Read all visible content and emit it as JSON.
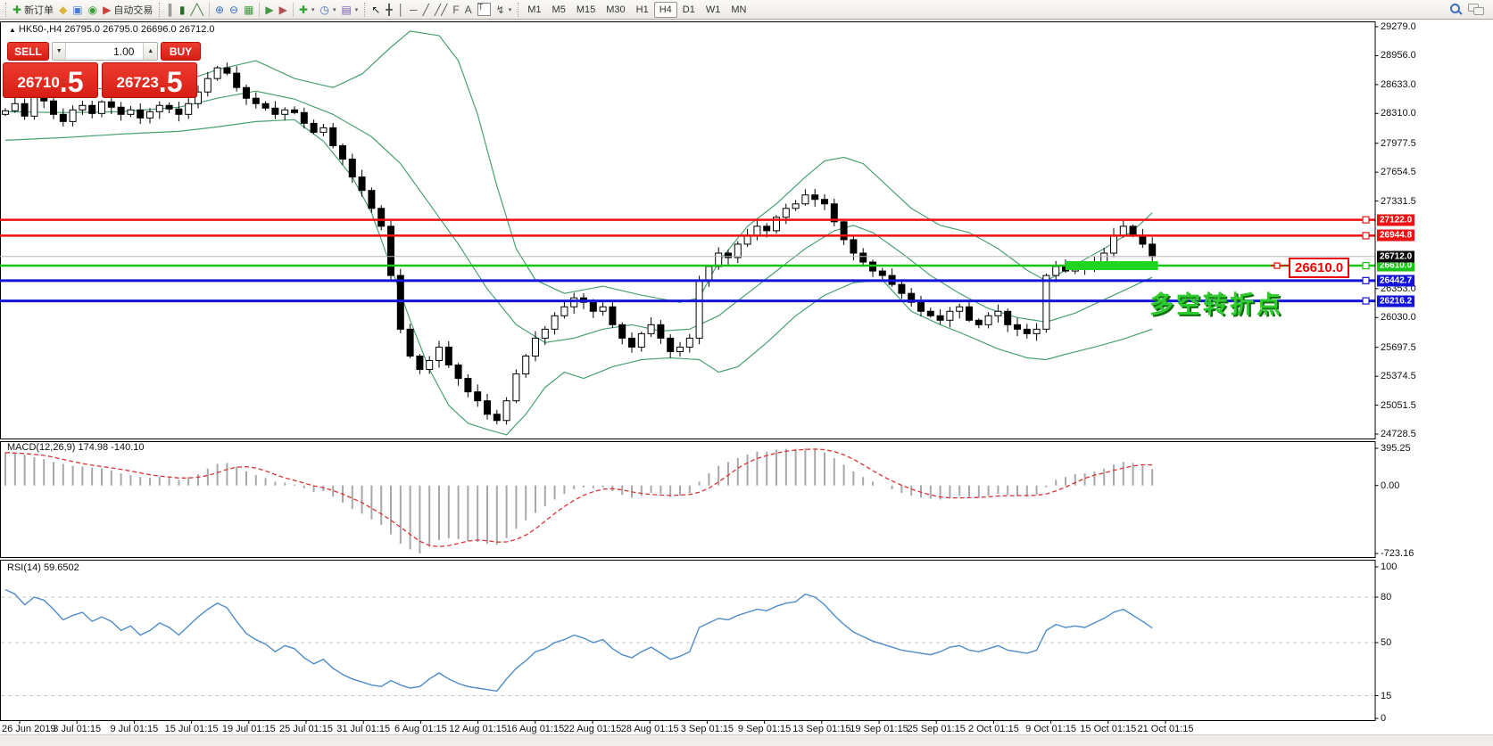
{
  "toolbar": {
    "groups": [
      {
        "items": [
          {
            "name": "new-order-button",
            "glyph": "✚",
            "glyph_color": "#2fa12f",
            "label": "新订单"
          },
          {
            "name": "objects-icon",
            "glyph": "◆",
            "glyph_color": "#e0b43c"
          },
          {
            "name": "terminal-icon",
            "glyph": "▣",
            "glyph_color": "#4a7fc9"
          },
          {
            "name": "signals-icon",
            "glyph": "◉",
            "glyph_color": "#3ba03b"
          },
          {
            "name": "autotrading-button",
            "glyph": "▶",
            "glyph_color": "#cf3a3a",
            "label": "自动交易"
          }
        ]
      },
      {
        "items": [
          {
            "name": "bar-chart-button",
            "glyph": "║",
            "glyph_color": "#444444"
          },
          {
            "name": "candlestick-button",
            "glyph": "▮",
            "glyph_color": "#2a6b2a"
          },
          {
            "name": "line-chart-button",
            "glyph": "╱╲",
            "glyph_color": "#3a7a3a"
          }
        ]
      },
      {
        "items": [
          {
            "name": "zoom-in-button",
            "glyph": "⊕",
            "glyph_color": "#3a6ebf"
          },
          {
            "name": "zoom-out-button",
            "glyph": "⊖",
            "glyph_color": "#3a6ebf"
          },
          {
            "name": "tile-windows-button",
            "glyph": "▦",
            "glyph_color": "#3f9b3f"
          }
        ]
      },
      {
        "items": [
          {
            "name": "auto-scroll-button",
            "glyph": "▶",
            "glyph_color": "#3f9b3f"
          },
          {
            "name": "chart-shift-button",
            "glyph": "▶",
            "glyph_color": "#b05050"
          }
        ]
      },
      {
        "items": [
          {
            "name": "new-chart-button",
            "glyph": "✚",
            "glyph_color": "#2fa12f",
            "dropdown": true
          },
          {
            "name": "periods-button",
            "glyph": "◷",
            "glyph_color": "#3a6ebf",
            "dropdown": true
          },
          {
            "name": "templates-button",
            "glyph": "▤",
            "glyph_color": "#7a5ab0",
            "dropdown": true
          }
        ]
      },
      {
        "items": [
          {
            "name": "cursor-button",
            "glyph": "↖",
            "glyph_color": "#222222"
          },
          {
            "name": "crosshair-button",
            "glyph": "╋",
            "glyph_color": "#555555"
          },
          {
            "name": "vertical-line-button",
            "glyph": "│",
            "glyph_color": "#555555"
          },
          {
            "name": "horizontal-line-button",
            "glyph": "─",
            "glyph_color": "#555555"
          },
          {
            "name": "trendline-button",
            "glyph": "╱",
            "glyph_color": "#555555"
          },
          {
            "name": "equidistant-channel-button",
            "glyph": "╱╱",
            "glyph_color": "#555555"
          },
          {
            "name": "fibonacci-button",
            "glyph": "F",
            "glyph_color": "#555555"
          },
          {
            "name": "text-button",
            "glyph": "A",
            "glyph_color": "#555555"
          },
          {
            "name": "text-label-button",
            "glyph": "T",
            "glyph_color": "#555555",
            "boxed": true
          },
          {
            "name": "arrows-button",
            "glyph": "↯",
            "glyph_color": "#555555",
            "dropdown": true
          }
        ]
      }
    ],
    "timeframes": [
      "M1",
      "M5",
      "M15",
      "M30",
      "H1",
      "H4",
      "D1",
      "W1",
      "MN"
    ],
    "active_timeframe": "H4"
  },
  "chart": {
    "marker": "▲",
    "title": "HK50-,H4 26795.0 26795.0 26696.0 26712.0"
  },
  "trade_panel": {
    "sell_label": "SELL",
    "buy_label": "BUY",
    "volume": "1.00",
    "spin_down": "▼",
    "spin_up": "▲",
    "sell_price": {
      "main": "26710",
      "big": ".5"
    },
    "buy_price": {
      "main": "26723",
      "big": ".5"
    }
  },
  "annotations": {
    "price_callout": "26610.0",
    "pivot_text": "多空转折点",
    "pivot_color": "#2ecc2e",
    "callout_color": "#f20000"
  },
  "chart_data": {
    "type": "candlestick",
    "symbol": "HK50-",
    "period": "H4",
    "x_labels": [
      "26 Jun 2019",
      "3 Jul 01:15",
      "9 Jul 01:15",
      "15 Jul 01:15",
      "19 Jul 01:15",
      "25 Jul 01:15",
      "31 Jul 01:15",
      "6 Aug 01:15",
      "12 Aug 01:15",
      "16 Aug 01:15",
      "22 Aug 01:15",
      "28 Aug 01:15",
      "3 Sep 01:15",
      "9 Sep 01:15",
      "13 Sep 01:15",
      "19 Sep 01:15",
      "25 Sep 01:15",
      "2 Oct 01:15",
      "9 Oct 01:15",
      "15 Oct 01:15",
      "21 Oct 01:15"
    ],
    "main": {
      "ylim": [
        24728.5,
        29279.0
      ],
      "yticks": [
        29279.0,
        28956.0,
        28633.0,
        28310.0,
        27977.5,
        27654.5,
        27331.5,
        26353.0,
        26030.0,
        25697.5,
        25374.5,
        25051.5,
        24728.5
      ],
      "first_open": 28300,
      "closes": [
        28340,
        28420,
        28280,
        28510,
        28450,
        28300,
        28220,
        28350,
        28400,
        28310,
        28440,
        28380,
        28300,
        28350,
        28260,
        28330,
        28400,
        28360,
        28300,
        28420,
        28550,
        28700,
        28820,
        28760,
        28600,
        28480,
        28420,
        28370,
        28300,
        28350,
        28320,
        28200,
        28100,
        28150,
        27950,
        27800,
        27600,
        27450,
        27250,
        27050,
        26500,
        25900,
        25600,
        25450,
        25550,
        25700,
        25500,
        25350,
        25200,
        25100,
        24950,
        24880,
        25100,
        25400,
        25600,
        25800,
        25900,
        26050,
        26150,
        26250,
        26200,
        26100,
        26150,
        25950,
        25800,
        25700,
        25850,
        25950,
        25800,
        25650,
        25700,
        25800,
        26450,
        26600,
        26750,
        26700,
        26850,
        26950,
        27050,
        27000,
        27150,
        27250,
        27300,
        27400,
        27350,
        27300,
        27100,
        26900,
        26750,
        26650,
        26550,
        26500,
        26400,
        26300,
        26200,
        26100,
        26050,
        26000,
        26100,
        26150,
        26000,
        25950,
        26050,
        26100,
        25950,
        25900,
        25850,
        25900,
        26500,
        26600,
        26550,
        26600,
        26580,
        26650,
        26750,
        26950,
        27050,
        26950,
        26850,
        26712
      ],
      "up_fill": "#ffffff",
      "down_fill": "#000000",
      "outline": "#000000",
      "band_color": "#4aa173",
      "bollinger": {
        "upper": [
          [
            0,
            28650
          ],
          [
            6,
            28600
          ],
          [
            12,
            28580
          ],
          [
            18,
            28650
          ],
          [
            22,
            28800
          ],
          [
            26,
            28900
          ],
          [
            30,
            28700
          ],
          [
            34,
            28600
          ],
          [
            37,
            28750
          ],
          [
            40,
            29050
          ],
          [
            42,
            29230
          ],
          [
            45,
            29180
          ],
          [
            47,
            28900
          ],
          [
            49,
            28300
          ],
          [
            51,
            27500
          ],
          [
            53,
            26800
          ],
          [
            55,
            26450
          ],
          [
            58,
            26300
          ],
          [
            62,
            26380
          ],
          [
            66,
            26280
          ],
          [
            70,
            26200
          ],
          [
            72,
            26250
          ],
          [
            74,
            26650
          ],
          [
            77,
            27050
          ],
          [
            80,
            27300
          ],
          [
            83,
            27600
          ],
          [
            85,
            27780
          ],
          [
            87,
            27820
          ],
          [
            89,
            27750
          ],
          [
            91,
            27550
          ],
          [
            94,
            27250
          ],
          [
            97,
            27060
          ],
          [
            100,
            26980
          ],
          [
            103,
            26800
          ],
          [
            106,
            26560
          ],
          [
            108,
            26440
          ],
          [
            111,
            26620
          ],
          [
            114,
            26800
          ],
          [
            117,
            27000
          ],
          [
            119,
            27200
          ]
        ],
        "middle": [
          [
            0,
            28330
          ],
          [
            6,
            28320
          ],
          [
            12,
            28330
          ],
          [
            18,
            28380
          ],
          [
            22,
            28480
          ],
          [
            26,
            28560
          ],
          [
            30,
            28470
          ],
          [
            34,
            28300
          ],
          [
            38,
            28050
          ],
          [
            41,
            27750
          ],
          [
            44,
            27300
          ],
          [
            47,
            26850
          ],
          [
            50,
            26350
          ],
          [
            53,
            25950
          ],
          [
            56,
            25750
          ],
          [
            59,
            25800
          ],
          [
            62,
            25900
          ],
          [
            65,
            25950
          ],
          [
            68,
            25880
          ],
          [
            71,
            25900
          ],
          [
            74,
            26050
          ],
          [
            77,
            26300
          ],
          [
            80,
            26550
          ],
          [
            83,
            26800
          ],
          [
            86,
            27000
          ],
          [
            88,
            27060
          ],
          [
            90,
            26980
          ],
          [
            93,
            26750
          ],
          [
            96,
            26500
          ],
          [
            99,
            26300
          ],
          [
            102,
            26130
          ],
          [
            105,
            26030
          ],
          [
            108,
            25980
          ],
          [
            111,
            26080
          ],
          [
            114,
            26230
          ],
          [
            117,
            26380
          ],
          [
            119,
            26480
          ]
        ],
        "lower": [
          [
            0,
            28010
          ],
          [
            6,
            28040
          ],
          [
            12,
            28080
          ],
          [
            18,
            28110
          ],
          [
            22,
            28160
          ],
          [
            26,
            28220
          ],
          [
            30,
            28240
          ],
          [
            33,
            28000
          ],
          [
            36,
            27600
          ],
          [
            38,
            27200
          ],
          [
            40,
            26600
          ],
          [
            42,
            26000
          ],
          [
            44,
            25450
          ],
          [
            46,
            25050
          ],
          [
            48,
            24850
          ],
          [
            50,
            24780
          ],
          [
            52,
            24720
          ],
          [
            54,
            24950
          ],
          [
            56,
            25250
          ],
          [
            58,
            25420
          ],
          [
            60,
            25350
          ],
          [
            63,
            25480
          ],
          [
            66,
            25560
          ],
          [
            69,
            25580
          ],
          [
            72,
            25560
          ],
          [
            74,
            25420
          ],
          [
            76,
            25480
          ],
          [
            79,
            25750
          ],
          [
            82,
            26050
          ],
          [
            85,
            26280
          ],
          [
            88,
            26420
          ],
          [
            91,
            26450
          ],
          [
            94,
            26100
          ],
          [
            97,
            25950
          ],
          [
            100,
            25820
          ],
          [
            103,
            25680
          ],
          [
            106,
            25580
          ],
          [
            108,
            25560
          ],
          [
            110,
            25620
          ],
          [
            113,
            25700
          ],
          [
            116,
            25790
          ],
          [
            119,
            25900
          ]
        ]
      },
      "hlines": [
        {
          "price": 27122.0,
          "tag": "27122.0",
          "color": "#ee1111",
          "width": 2.5
        },
        {
          "price": 26944.8,
          "tag": "26944.8",
          "color": "#ee1111",
          "width": 2.5
        },
        {
          "price": 26610.0,
          "tag": "26610.0",
          "color": "#17c517",
          "width": 2.5
        },
        {
          "price": 26442.7,
          "tag": "26442.7",
          "color": "#1414d9",
          "width": 3
        },
        {
          "price": 26216.2,
          "tag": "26216.2",
          "color": "#1414d9",
          "width": 3
        }
      ],
      "current_price": {
        "price": 26712.0,
        "tag": "26712.0",
        "line_color": "#b8b8b8",
        "tag_bg": "#0a0a0a"
      },
      "highlight_zone": {
        "price": 26610.0,
        "start_bar": 110,
        "end_bar": 119.6,
        "color": "#1fd51f",
        "height": 10
      }
    },
    "macd": {
      "label": "MACD(12,26,9) 174.98 -140.10",
      "ylim": [
        -723.16,
        395.25
      ],
      "yticks": [
        395.25,
        0,
        -723.16
      ],
      "histogram_color": "#a8a8a8",
      "signal_color": "#d83434",
      "values": [
        350,
        340,
        330,
        300,
        280,
        250,
        230,
        210,
        200,
        190,
        180,
        160,
        130,
        110,
        90,
        80,
        90,
        80,
        60,
        90,
        120,
        180,
        230,
        240,
        200,
        150,
        110,
        80,
        40,
        30,
        10,
        -30,
        -70,
        -60,
        -120,
        -180,
        -250,
        -300,
        -360,
        -420,
        -520,
        -620,
        -680,
        -723,
        -650,
        -580,
        -560,
        -570,
        -590,
        -600,
        -620,
        -630,
        -560,
        -460,
        -370,
        -290,
        -220,
        -150,
        -90,
        -40,
        -20,
        -30,
        -20,
        -60,
        -100,
        -130,
        -110,
        -80,
        -90,
        -120,
        -110,
        -80,
        40,
        130,
        210,
        250,
        290,
        330,
        360,
        360,
        380,
        390,
        390,
        395,
        380,
        350,
        290,
        220,
        150,
        90,
        40,
        0,
        -40,
        -80,
        -110,
        -130,
        -140,
        -150,
        -130,
        -110,
        -120,
        -130,
        -110,
        -90,
        -100,
        -110,
        -120,
        -100,
        -20,
        60,
        90,
        120,
        130,
        150,
        180,
        220,
        250,
        240,
        210,
        175
      ]
    },
    "rsi": {
      "label": "RSI(14) 59.6502",
      "ylim": [
        0,
        100
      ],
      "yticks": [
        100,
        80,
        50,
        15,
        0
      ],
      "levels": [
        80,
        50,
        15
      ],
      "line_color": "#4e8cc8",
      "values": [
        85,
        82,
        75,
        80,
        78,
        72,
        65,
        68,
        70,
        64,
        67,
        64,
        58,
        61,
        55,
        58,
        63,
        60,
        55,
        61,
        67,
        72,
        76,
        73,
        64,
        56,
        52,
        49,
        44,
        48,
        46,
        40,
        36,
        39,
        33,
        29,
        26,
        24,
        22,
        21,
        25,
        22,
        20,
        21,
        26,
        30,
        26,
        23,
        21,
        20,
        19,
        18,
        26,
        33,
        38,
        44,
        46,
        50,
        52,
        55,
        53,
        50,
        52,
        46,
        42,
        40,
        44,
        47,
        43,
        39,
        41,
        44,
        60,
        63,
        66,
        65,
        68,
        70,
        72,
        71,
        74,
        76,
        77,
        82,
        80,
        75,
        68,
        62,
        57,
        54,
        51,
        49,
        47,
        45,
        44,
        43,
        42,
        44,
        47,
        48,
        45,
        44,
        46,
        48,
        45,
        44,
        43,
        45,
        58,
        62,
        60,
        61,
        60,
        63,
        66,
        70,
        72,
        68,
        64,
        59.65
      ]
    }
  }
}
